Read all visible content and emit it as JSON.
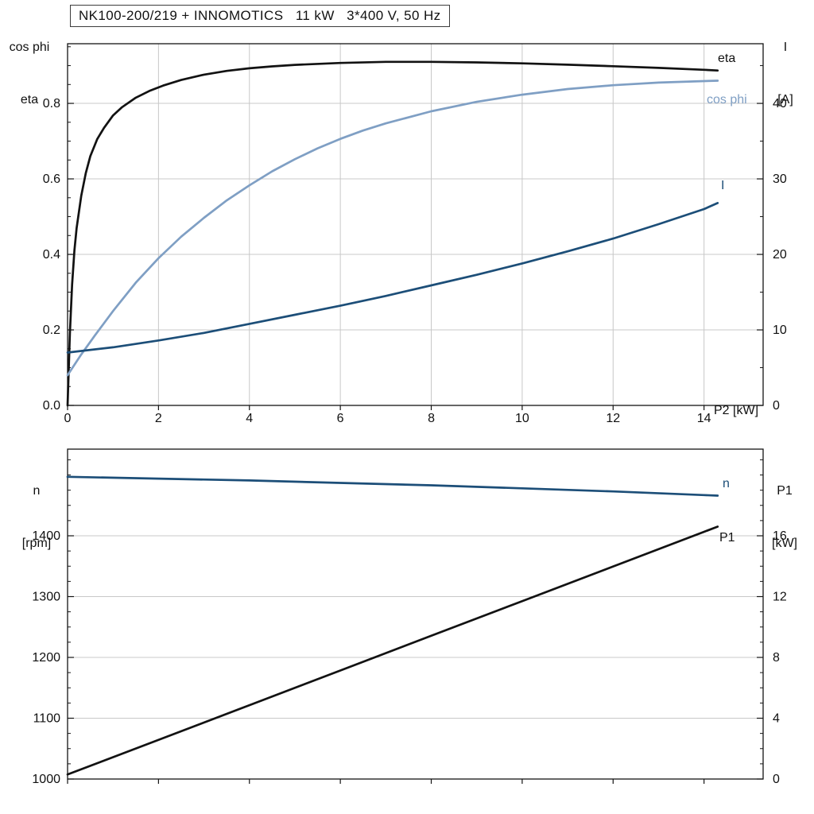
{
  "title_box": "NK100-200/219 + INNOMOTICS   11 kW   3*400 V, 50 Hz",
  "colors": {
    "black": "#121212",
    "steel_blue": "#7f9fc4",
    "dark_blue": "#1c4e78",
    "grid": "#c8c8c8",
    "frame": "#141414",
    "text": "#101010",
    "background": "#ffffff"
  },
  "chart_data": [
    {
      "type": "line",
      "title": "NK100-200/219 + INNOMOTICS   11 kW   3*400 V, 50 Hz",
      "x_label": "P2 [kW]",
      "left_axis_title_lines": [
        "cos phi",
        "eta"
      ],
      "right_axis_title_lines": [
        "I",
        "[A]"
      ],
      "xlim": [
        0,
        15.3
      ],
      "left_ylim": [
        0,
        0.958
      ],
      "right_ylim": [
        0,
        47.9
      ],
      "grid": "both",
      "x_ticks": {
        "values": [
          0,
          2,
          4,
          6,
          8,
          10,
          12,
          14
        ],
        "labels": [
          "0",
          "2",
          "4",
          "6",
          "8",
          "10",
          "12",
          "14"
        ]
      },
      "left_ticks": {
        "values": [
          0,
          0.2,
          0.4,
          0.6,
          0.8
        ],
        "labels": [
          "0.0",
          "0.2",
          "0.4",
          "0.6",
          "0.8"
        ],
        "minor_step": 0.05
      },
      "right_ticks": {
        "values": [
          0,
          10,
          20,
          30,
          40
        ],
        "labels": [
          "0",
          "10",
          "20",
          "30",
          "40"
        ],
        "minor_step": 5
      },
      "series": [
        {
          "name": "eta",
          "axis": "left",
          "color": "black",
          "x": [
            0,
            0.05,
            0.1,
            0.15,
            0.2,
            0.3,
            0.4,
            0.5,
            0.65,
            0.8,
            1.0,
            1.2,
            1.5,
            1.8,
            2.1,
            2.5,
            3.0,
            3.5,
            4.0,
            4.5,
            5.0,
            6.0,
            7.0,
            8.0,
            9.0,
            10.0,
            11.0,
            12.0,
            13.0,
            14.0,
            14.3
          ],
          "y": [
            0,
            0.19,
            0.32,
            0.41,
            0.47,
            0.555,
            0.615,
            0.66,
            0.705,
            0.735,
            0.768,
            0.79,
            0.815,
            0.833,
            0.847,
            0.862,
            0.876,
            0.886,
            0.893,
            0.898,
            0.902,
            0.907,
            0.91,
            0.91,
            0.9085,
            0.906,
            0.9025,
            0.8985,
            0.894,
            0.889,
            0.887
          ]
        },
        {
          "name": "cos phi",
          "axis": "left",
          "color": "steel_blue",
          "x": [
            0,
            0.3,
            0.6,
            1.0,
            1.5,
            2.0,
            2.5,
            3.0,
            3.5,
            4.0,
            4.5,
            5.0,
            5.5,
            6.0,
            6.5,
            7.0,
            8.0,
            9.0,
            10.0,
            11.0,
            12.0,
            13.0,
            14.0,
            14.3
          ],
          "y": [
            0.08,
            0.135,
            0.185,
            0.25,
            0.325,
            0.39,
            0.447,
            0.497,
            0.543,
            0.583,
            0.62,
            0.652,
            0.681,
            0.706,
            0.728,
            0.747,
            0.779,
            0.804,
            0.823,
            0.838,
            0.848,
            0.855,
            0.859,
            0.86
          ]
        },
        {
          "name": "I",
          "axis": "right",
          "color": "dark_blue",
          "x": [
            0,
            1,
            2,
            3,
            4,
            5,
            6,
            7,
            8,
            9,
            10,
            11,
            12,
            13,
            14,
            14.3
          ],
          "y": [
            7.0,
            7.7,
            8.6,
            9.6,
            10.8,
            12.0,
            13.2,
            14.5,
            15.9,
            17.3,
            18.8,
            20.4,
            22.1,
            24.0,
            26.0,
            26.8
          ]
        }
      ]
    },
    {
      "type": "line",
      "title": "",
      "x_label": "",
      "left_axis_title_lines": [
        "n",
        "[rpm]"
      ],
      "right_axis_title_lines": [
        "P1",
        "[kW]"
      ],
      "xlim": [
        0,
        15.3
      ],
      "left_ylim": [
        1000,
        1542.5
      ],
      "right_ylim": [
        0,
        21.7
      ],
      "grid": "horizontal",
      "x_ticks": {
        "values": [
          0,
          2,
          4,
          6,
          8,
          10,
          12,
          14
        ],
        "labels": [
          "",
          "",
          "",
          "",
          "",
          "",
          "",
          ""
        ]
      },
      "left_ticks": {
        "values": [
          1000,
          1100,
          1200,
          1300,
          1400
        ],
        "labels": [
          "1000",
          "1100",
          "1200",
          "1300",
          "1400"
        ],
        "minor_step": 25
      },
      "right_ticks": {
        "values": [
          0,
          4,
          8,
          12,
          16
        ],
        "labels": [
          "0",
          "4",
          "8",
          "12",
          "16"
        ],
        "minor_step": 1
      },
      "series": [
        {
          "name": "n",
          "axis": "left",
          "color": "dark_blue",
          "x": [
            0,
            2,
            4,
            6,
            8,
            10,
            12,
            14,
            14.3
          ],
          "y": [
            1497,
            1494,
            1491,
            1487,
            1483,
            1478,
            1473,
            1467,
            1466
          ]
        },
        {
          "name": "P1",
          "axis": "right",
          "color": "black",
          "x": [
            0,
            2,
            4,
            6,
            8,
            10,
            12,
            14,
            14.3
          ],
          "y": [
            0.3,
            2.58,
            4.86,
            7.14,
            9.42,
            11.7,
            13.98,
            16.26,
            16.6
          ]
        }
      ]
    }
  ]
}
